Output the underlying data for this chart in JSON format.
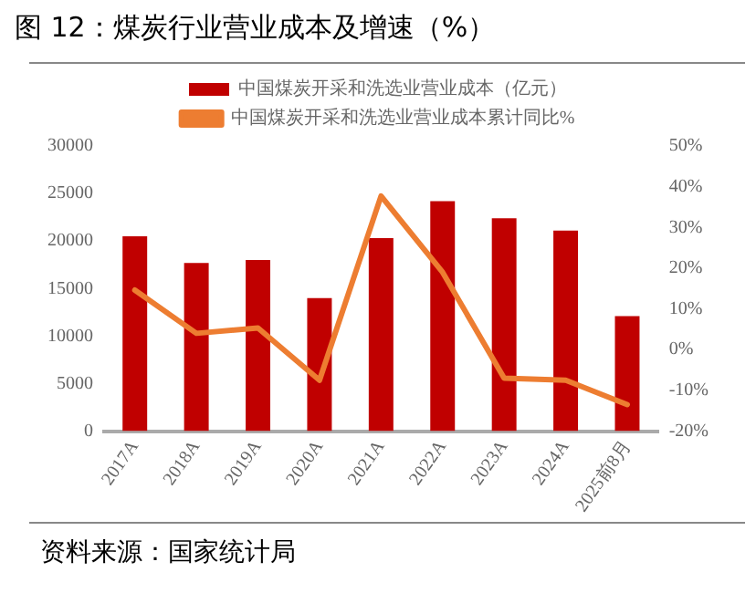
{
  "chart_data": {
    "type": "bar",
    "title": "图 12：煤炭行业营业成本及增速（%）",
    "categories": [
      "2017A",
      "2018A",
      "2019A",
      "2020A",
      "2021A",
      "2022A",
      "2023A",
      "2024A",
      "2025前8月"
    ],
    "series": [
      {
        "name": "中国煤炭开采和洗选业营业成本（亿元）",
        "color": "#c00000",
        "values": [
          20500,
          17700,
          18000,
          14000,
          20300,
          24200,
          22400,
          21100,
          12100
        ]
      },
      {
        "name": "中国煤炭开采和洗选业营业成本累计同比%",
        "type": "line",
        "axis": "y2",
        "color": "#ed7d31",
        "values": [
          14.6,
          4,
          5.3,
          -7.5,
          37.7,
          19,
          -7,
          -7.5,
          -13.5
        ]
      }
    ],
    "ylim": [
      0,
      30000
    ],
    "yticks": [
      0,
      5000,
      10000,
      15000,
      20000,
      25000,
      30000
    ],
    "y2lim": [
      -20,
      50
    ],
    "y2ticks": [
      {
        "value": -20,
        "label": "-20%"
      },
      {
        "value": -10,
        "label": "-10%"
      },
      {
        "value": 0,
        "label": "0%"
      },
      {
        "value": 10,
        "label": "10%"
      },
      {
        "value": 20,
        "label": "20%"
      },
      {
        "value": 30,
        "label": "30%"
      },
      {
        "value": 40,
        "label": "40%"
      },
      {
        "value": 50,
        "label": "50%"
      }
    ],
    "grid": false,
    "legend": "top",
    "marker": "none",
    "annotations": [
      "资料来源：国家统计局"
    ]
  }
}
